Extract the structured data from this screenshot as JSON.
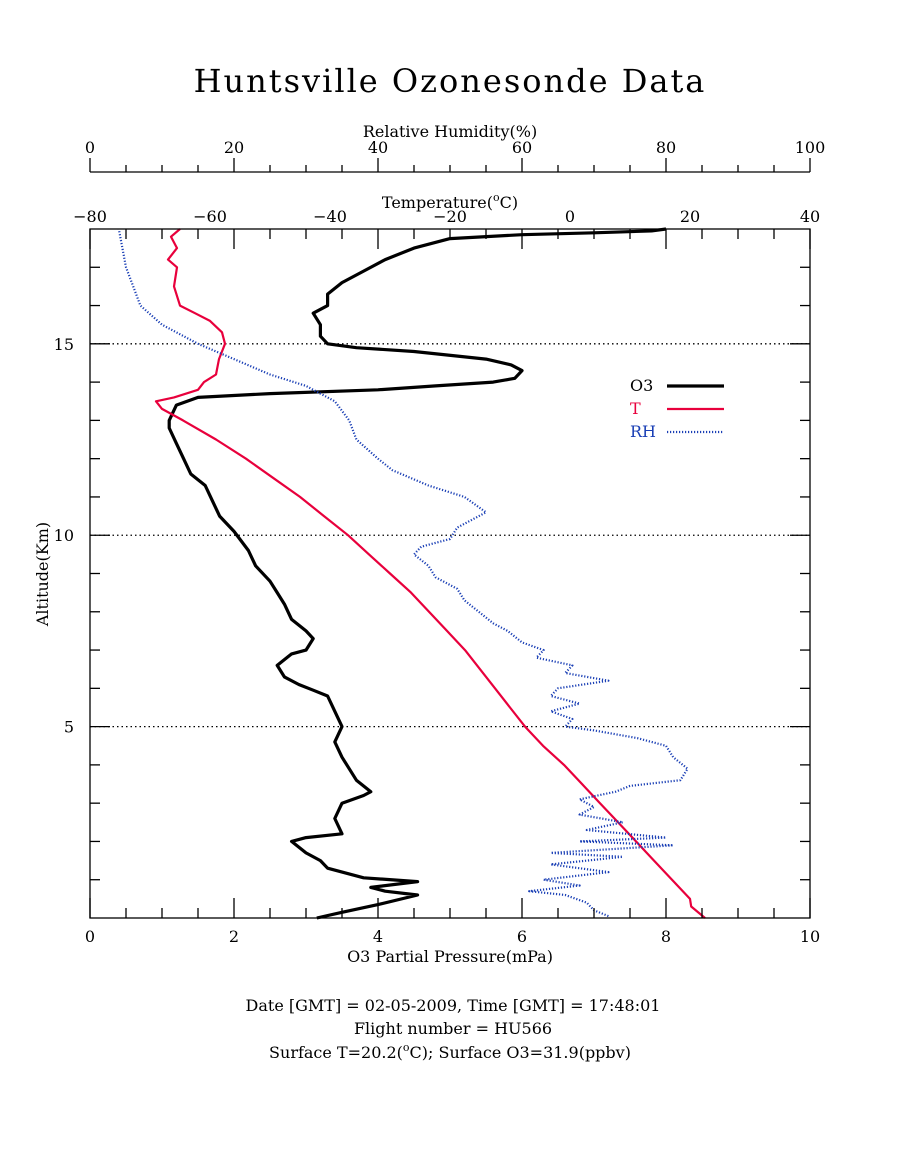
{
  "title": "Huntsville Ozonesonde Data",
  "footer": {
    "line1": "Date [GMT] = 02-05-2009,  Time [GMT] = 17:48:01",
    "line2": "Flight number = HU566",
    "line3_pre": "Surface T=20.2(",
    "line3_sup": "o",
    "line3_post": "C); Surface O3=31.9(ppbv)"
  },
  "colors": {
    "o3": "#000000",
    "t": "#e8003c",
    "rh": "#1a3fb5",
    "ref": "#000000"
  },
  "chart_data": {
    "type": "line",
    "title": "Huntsville Ozonesonde Data",
    "ylabel": "Altitude(Km)",
    "ylim": [
      0,
      18
    ],
    "y_ticks": [
      5,
      10,
      15
    ],
    "reference_lines_y": [
      5,
      10,
      15
    ],
    "x_axes": {
      "o3": {
        "label": "O3 Partial Pressure(mPa)",
        "range": [
          0,
          10
        ],
        "ticks": [
          0,
          2,
          4,
          6,
          8,
          10
        ],
        "position": "bottom"
      },
      "temperature": {
        "label_pre": "Temperature(",
        "label_sup": "o",
        "label_post": "C)",
        "range": [
          -80,
          40
        ],
        "ticks": [
          -80,
          -60,
          -40,
          -20,
          0,
          20,
          40
        ],
        "position": "top"
      },
      "rh": {
        "label": "Relative Humidity(%)",
        "range": [
          0,
          100
        ],
        "ticks": [
          0,
          20,
          40,
          60,
          80,
          100
        ],
        "position": "top"
      }
    },
    "legend": {
      "position": "upper-right",
      "entries": [
        "O3",
        "T",
        "RH"
      ]
    },
    "series": [
      {
        "name": "O3",
        "axis": "o3",
        "style": "solid",
        "points": [
          [
            3.15,
            0.0
          ],
          [
            3.5,
            0.15
          ],
          [
            4.0,
            0.35
          ],
          [
            4.55,
            0.6
          ],
          [
            4.1,
            0.7
          ],
          [
            3.9,
            0.8
          ],
          [
            4.55,
            0.95
          ],
          [
            3.8,
            1.05
          ],
          [
            3.3,
            1.3
          ],
          [
            3.2,
            1.5
          ],
          [
            3.0,
            1.7
          ],
          [
            2.8,
            2.0
          ],
          [
            3.0,
            2.1
          ],
          [
            3.5,
            2.2
          ],
          [
            3.4,
            2.6
          ],
          [
            3.5,
            3.0
          ],
          [
            3.8,
            3.2
          ],
          [
            3.9,
            3.3
          ],
          [
            3.7,
            3.6
          ],
          [
            3.6,
            3.9
          ],
          [
            3.5,
            4.2
          ],
          [
            3.4,
            4.6
          ],
          [
            3.5,
            5.0
          ],
          [
            3.4,
            5.4
          ],
          [
            3.3,
            5.8
          ],
          [
            3.1,
            5.95
          ],
          [
            2.9,
            6.1
          ],
          [
            2.7,
            6.3
          ],
          [
            2.6,
            6.6
          ],
          [
            2.8,
            6.9
          ],
          [
            3.0,
            7.0
          ],
          [
            3.1,
            7.3
          ],
          [
            3.0,
            7.5
          ],
          [
            2.8,
            7.8
          ],
          [
            2.7,
            8.2
          ],
          [
            2.6,
            8.5
          ],
          [
            2.5,
            8.8
          ],
          [
            2.3,
            9.2
          ],
          [
            2.2,
            9.6
          ],
          [
            2.0,
            10.1
          ],
          [
            1.8,
            10.5
          ],
          [
            1.7,
            10.9
          ],
          [
            1.6,
            11.3
          ],
          [
            1.4,
            11.6
          ],
          [
            1.3,
            12.0
          ],
          [
            1.2,
            12.4
          ],
          [
            1.1,
            12.8
          ],
          [
            1.1,
            13.0
          ],
          [
            1.2,
            13.4
          ],
          [
            1.5,
            13.6
          ],
          [
            2.5,
            13.7
          ],
          [
            4.0,
            13.8
          ],
          [
            4.8,
            13.9
          ],
          [
            5.6,
            14.0
          ],
          [
            5.9,
            14.1
          ],
          [
            6.0,
            14.3
          ],
          [
            5.85,
            14.45
          ],
          [
            5.5,
            14.6
          ],
          [
            4.5,
            14.8
          ],
          [
            3.7,
            14.9
          ],
          [
            3.3,
            15.0
          ],
          [
            3.2,
            15.2
          ],
          [
            3.2,
            15.5
          ],
          [
            3.1,
            15.8
          ],
          [
            3.3,
            16.0
          ],
          [
            3.3,
            16.3
          ],
          [
            3.5,
            16.6
          ],
          [
            3.8,
            16.9
          ],
          [
            4.1,
            17.2
          ],
          [
            4.5,
            17.5
          ],
          [
            5.0,
            17.75
          ],
          [
            6.0,
            17.85
          ],
          [
            7.0,
            17.9
          ],
          [
            7.8,
            17.95
          ],
          [
            8.0,
            18.0
          ]
        ]
      },
      {
        "name": "T",
        "axis": "temperature",
        "style": "dash-dot",
        "points": [
          [
            22.5,
            0.0
          ],
          [
            20.2,
            0.3
          ],
          [
            20.0,
            0.5
          ],
          [
            17.0,
            1.0
          ],
          [
            14.0,
            1.5
          ],
          [
            11.0,
            2.0
          ],
          [
            8.0,
            2.5
          ],
          [
            5.0,
            3.0
          ],
          [
            2.0,
            3.5
          ],
          [
            -1.0,
            4.0
          ],
          [
            -4.5,
            4.5
          ],
          [
            -7.5,
            5.0
          ],
          [
            -10.0,
            5.5
          ],
          [
            -12.5,
            6.0
          ],
          [
            -15.0,
            6.5
          ],
          [
            -17.5,
            7.0
          ],
          [
            -20.5,
            7.5
          ],
          [
            -23.5,
            8.0
          ],
          [
            -26.5,
            8.5
          ],
          [
            -30.0,
            9.0
          ],
          [
            -33.5,
            9.5
          ],
          [
            -37.0,
            10.0
          ],
          [
            -41.0,
            10.5
          ],
          [
            -45.0,
            11.0
          ],
          [
            -49.5,
            11.5
          ],
          [
            -54.0,
            12.0
          ],
          [
            -59.0,
            12.5
          ],
          [
            -64.5,
            13.0
          ],
          [
            -68.0,
            13.3
          ],
          [
            -69.0,
            13.5
          ],
          [
            -66.0,
            13.6
          ],
          [
            -62.0,
            13.8
          ],
          [
            -61.0,
            14.0
          ],
          [
            -59.0,
            14.2
          ],
          [
            -58.5,
            14.6
          ],
          [
            -57.5,
            15.0
          ],
          [
            -58.0,
            15.3
          ],
          [
            -60.0,
            15.6
          ],
          [
            -62.5,
            15.8
          ],
          [
            -65.0,
            16.0
          ],
          [
            -66.0,
            16.5
          ],
          [
            -65.5,
            17.0
          ],
          [
            -67.0,
            17.2
          ],
          [
            -65.5,
            17.5
          ],
          [
            -66.5,
            17.8
          ],
          [
            -65.0,
            18.0
          ]
        ]
      },
      {
        "name": "RH",
        "axis": "rh",
        "style": "dotted",
        "points": [
          [
            72,
            0.05
          ],
          [
            70,
            0.2
          ],
          [
            69,
            0.4
          ],
          [
            66,
            0.6
          ],
          [
            61,
            0.7
          ],
          [
            68,
            0.85
          ],
          [
            63,
            1.0
          ],
          [
            72,
            1.2
          ],
          [
            64,
            1.4
          ],
          [
            74,
            1.6
          ],
          [
            64,
            1.7
          ],
          [
            81,
            1.9
          ],
          [
            68,
            2.0
          ],
          [
            80,
            2.1
          ],
          [
            69,
            2.3
          ],
          [
            74,
            2.5
          ],
          [
            68,
            2.7
          ],
          [
            70,
            2.9
          ],
          [
            68,
            3.1
          ],
          [
            73,
            3.3
          ],
          [
            75,
            3.45
          ],
          [
            82,
            3.6
          ],
          [
            83,
            3.9
          ],
          [
            81,
            4.2
          ],
          [
            80,
            4.5
          ],
          [
            76,
            4.7
          ],
          [
            70,
            4.9
          ],
          [
            66,
            5.0
          ],
          [
            67,
            5.2
          ],
          [
            64,
            5.4
          ],
          [
            68,
            5.6
          ],
          [
            64,
            5.8
          ],
          [
            65,
            6.0
          ],
          [
            72,
            6.2
          ],
          [
            66,
            6.4
          ],
          [
            67,
            6.6
          ],
          [
            62,
            6.8
          ],
          [
            63,
            7.0
          ],
          [
            60,
            7.2
          ],
          [
            58,
            7.5
          ],
          [
            56,
            7.7
          ],
          [
            54,
            8.0
          ],
          [
            52,
            8.3
          ],
          [
            51,
            8.6
          ],
          [
            48,
            8.9
          ],
          [
            47,
            9.2
          ],
          [
            45,
            9.5
          ],
          [
            46,
            9.7
          ],
          [
            50,
            9.9
          ],
          [
            51,
            10.2
          ],
          [
            55,
            10.6
          ],
          [
            52,
            11.0
          ],
          [
            47,
            11.3
          ],
          [
            42,
            11.7
          ],
          [
            40,
            12.0
          ],
          [
            37,
            12.5
          ],
          [
            36,
            13.0
          ],
          [
            34,
            13.5
          ],
          [
            30,
            13.9
          ],
          [
            25,
            14.2
          ],
          [
            20,
            14.6
          ],
          [
            15,
            15.0
          ],
          [
            10,
            15.5
          ],
          [
            7,
            16.0
          ],
          [
            6,
            16.5
          ],
          [
            5,
            17.0
          ],
          [
            4.5,
            17.5
          ],
          [
            4,
            18.0
          ]
        ]
      }
    ]
  }
}
